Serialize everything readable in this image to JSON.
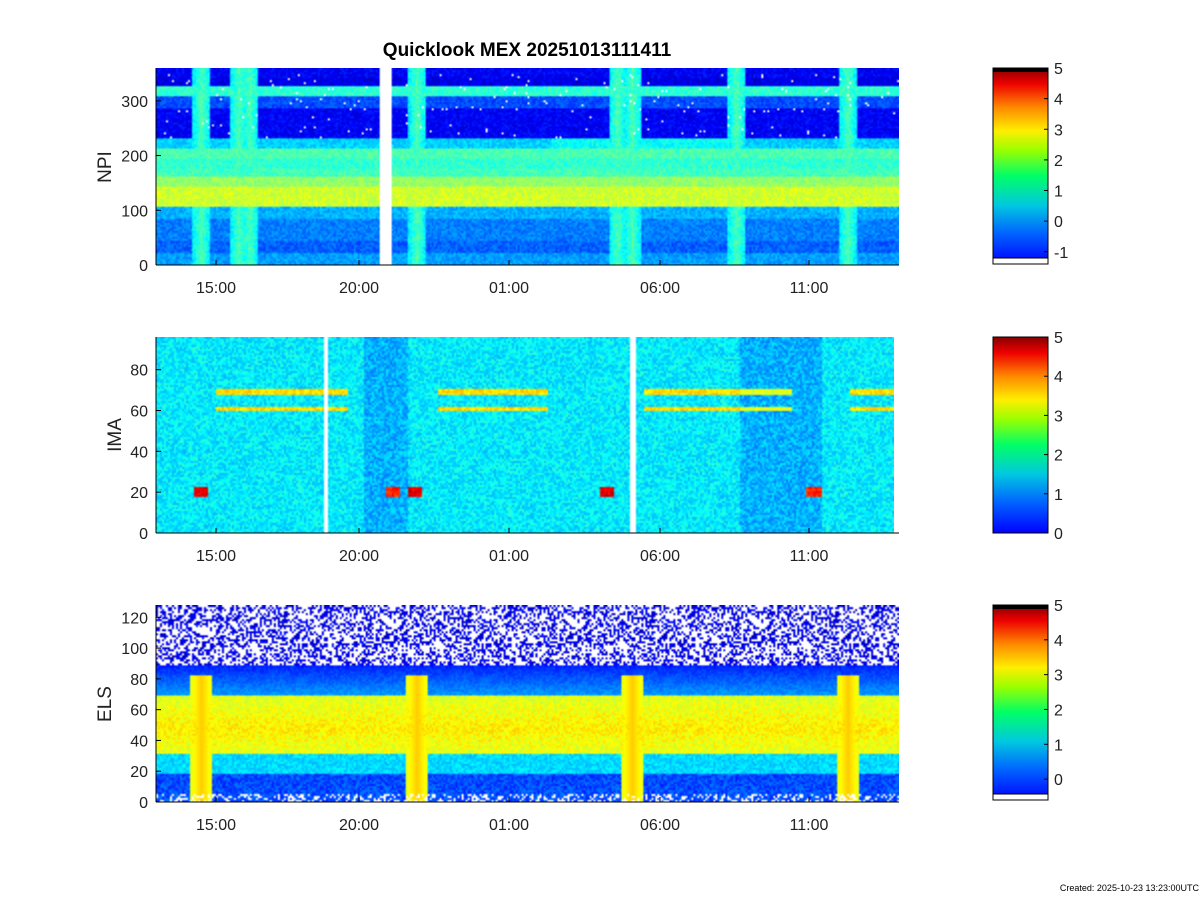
{
  "chart_data": [
    {
      "type": "heatmap",
      "title": "Quicklook MEX 20251013111411",
      "ylabel": "NPI",
      "xtick_labels": [
        "15:00",
        "20:00",
        "01:00",
        "06:00",
        "11:00"
      ],
      "yticks": [
        0,
        100,
        200,
        300
      ],
      "ylim": [
        0,
        360
      ],
      "colorbar": {
        "ticks": [
          -1,
          0,
          1,
          2,
          3,
          4,
          5
        ],
        "range": [
          -1.4,
          5
        ]
      }
    },
    {
      "type": "heatmap",
      "title": "",
      "ylabel": "IMA",
      "xtick_labels": [
        "15:00",
        "20:00",
        "01:00",
        "06:00",
        "11:00"
      ],
      "yticks": [
        0,
        20,
        40,
        60,
        80
      ],
      "ylim": [
        0,
        96
      ],
      "colorbar": {
        "ticks": [
          0,
          1,
          2,
          3,
          4,
          5
        ],
        "range": [
          0,
          5
        ]
      }
    },
    {
      "type": "heatmap",
      "title": "",
      "ylabel": "ELS",
      "xtick_labels": [
        "15:00",
        "20:00",
        "01:00",
        "06:00",
        "11:00"
      ],
      "yticks": [
        0,
        20,
        40,
        60,
        80,
        100,
        120
      ],
      "ylim": [
        0,
        128
      ],
      "colorbar": {
        "ticks": [
          0,
          1,
          2,
          3,
          4,
          5
        ],
        "range": [
          -0.6,
          5
        ]
      }
    }
  ],
  "footer": "Created: 2025-10-23 13:23:00UTC",
  "colors": {
    "colormap": "jet-like",
    "background": "#ffffff",
    "axis": "#000000"
  }
}
